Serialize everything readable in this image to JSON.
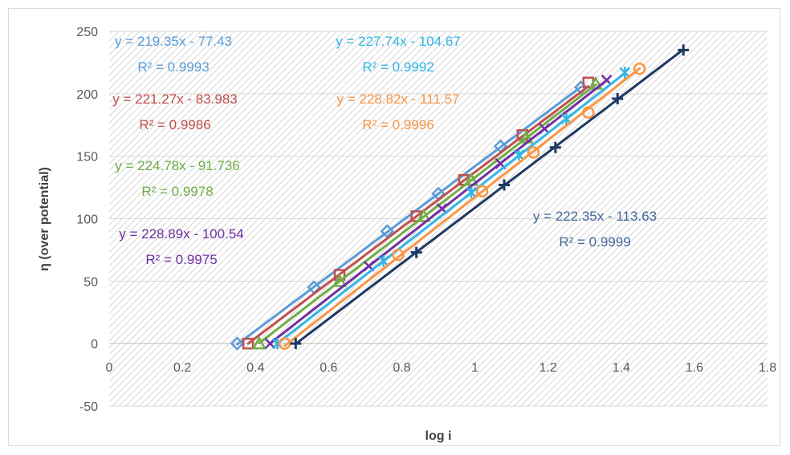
{
  "chart_data": {
    "type": "scatter",
    "xlabel": "log i",
    "ylabel": "η (over potential)",
    "xlim": [
      0,
      1.8
    ],
    "ylim": [
      -50,
      250
    ],
    "x_ticks": [
      "0",
      "0.2",
      "0.4",
      "0.6",
      "0.8",
      "1",
      "1.2",
      "1.4",
      "1.6",
      "1.8"
    ],
    "y_ticks": [
      "-50",
      "0",
      "50",
      "100",
      "150",
      "200",
      "250"
    ],
    "grid": "horizontal",
    "background": "diagonal hatch",
    "series": [
      {
        "color": "#5b9bd5",
        "marker": "diamond",
        "slope": 219.35,
        "intercept": -77.43,
        "points": [
          [
            0.35,
            0
          ],
          [
            0.56,
            45
          ],
          [
            0.76,
            90
          ],
          [
            0.9,
            120
          ],
          [
            1.07,
            158
          ],
          [
            1.29,
            205
          ]
        ],
        "equation": "y = 219.35x - 77.43",
        "r2": "R² = 0.9993"
      },
      {
        "color": "#c0504d",
        "marker": "square",
        "slope": 221.27,
        "intercept": -83.983,
        "points": [
          [
            0.38,
            0
          ],
          [
            0.63,
            55
          ],
          [
            0.84,
            102
          ],
          [
            0.97,
            131
          ],
          [
            1.13,
            167
          ],
          [
            1.31,
            209
          ]
        ],
        "equation": "y = 221.27x - 83.983",
        "r2": "R² = 0.9986"
      },
      {
        "color": "#70ad47",
        "marker": "triangle",
        "slope": 224.78,
        "intercept": -91.736,
        "points": [
          [
            0.41,
            0
          ],
          [
            0.63,
            50
          ],
          [
            0.86,
            102
          ],
          [
            0.99,
            131
          ],
          [
            1.14,
            165
          ],
          [
            1.33,
            208
          ]
        ],
        "equation": "y = 224.78x - 91.736",
        "r2": "R² = 0.9978"
      },
      {
        "color": "#7030a0",
        "marker": "x",
        "slope": 228.89,
        "intercept": -100.54,
        "points": [
          [
            0.44,
            0
          ],
          [
            0.71,
            62
          ],
          [
            0.91,
            108
          ],
          [
            1.07,
            144
          ],
          [
            1.19,
            172
          ],
          [
            1.36,
            211
          ]
        ],
        "equation": "y = 228.89x - 100.54",
        "r2": "R² = 0.9975"
      },
      {
        "color": "#33b5e5",
        "marker": "asterisk",
        "slope": 227.74,
        "intercept": -104.67,
        "points": [
          [
            0.46,
            0
          ],
          [
            0.75,
            66
          ],
          [
            0.99,
            121
          ],
          [
            1.12,
            151
          ],
          [
            1.25,
            180
          ],
          [
            1.41,
            217
          ]
        ],
        "equation": "y = 227.74x - 104.67",
        "r2": "R² = 0.9992"
      },
      {
        "color": "#f79646",
        "marker": "circle",
        "slope": 228.82,
        "intercept": -111.57,
        "points": [
          [
            0.48,
            0
          ],
          [
            0.79,
            71
          ],
          [
            1.02,
            122
          ],
          [
            1.16,
            153
          ],
          [
            1.31,
            185
          ],
          [
            1.45,
            220
          ]
        ],
        "equation": "y = 228.82x - 111.57",
        "r2": "R² = 0.9996"
      },
      {
        "color": "#1f3864",
        "marker": "plus",
        "slope": 222.35,
        "intercept": -113.63,
        "points": [
          [
            0.51,
            0
          ],
          [
            0.84,
            73
          ],
          [
            1.08,
            127
          ],
          [
            1.22,
            157
          ],
          [
            1.39,
            196
          ],
          [
            1.57,
            235
          ]
        ],
        "equation": "y = 222.35x - 113.63",
        "r2": "R² = 0.9999",
        "label_color": "#44689a"
      }
    ]
  }
}
